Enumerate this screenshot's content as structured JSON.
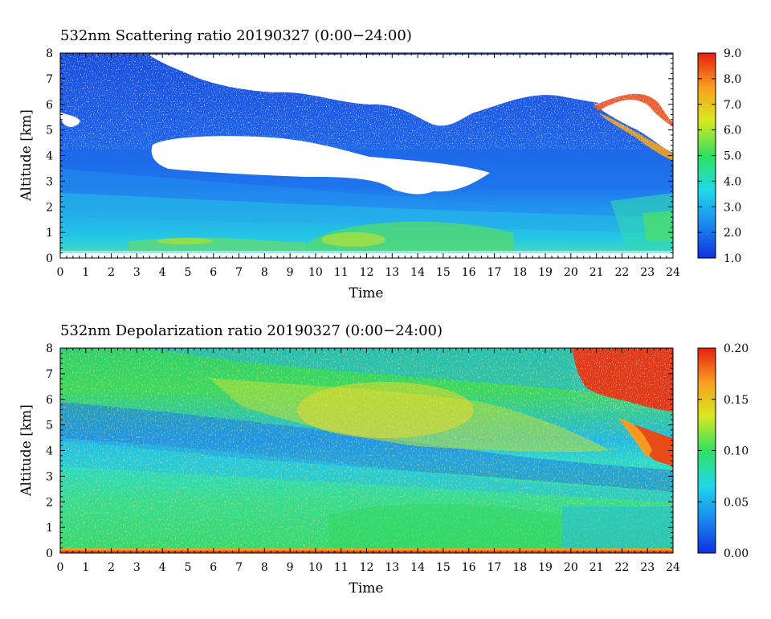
{
  "chart_data": [
    {
      "type": "heatmap",
      "title": "532nm Scattering ratio  20190327 (0:00−24:00)",
      "xlabel": "Time",
      "ylabel": "Altitude [km]",
      "xlim": [
        0,
        24
      ],
      "ylim": [
        0,
        8
      ],
      "xticks": [
        "0",
        "1",
        "2",
        "3",
        "4",
        "5",
        "6",
        "7",
        "8",
        "9",
        "10",
        "11",
        "12",
        "13",
        "14",
        "15",
        "16",
        "17",
        "18",
        "19",
        "20",
        "21",
        "22",
        "23",
        "24"
      ],
      "yticks": [
        "0",
        "1",
        "2",
        "3",
        "4",
        "5",
        "6",
        "7",
        "8"
      ],
      "colorbar": {
        "range": [
          1.0,
          9.0
        ],
        "ticks": [
          "1.0",
          "2.0",
          "3.0",
          "4.0",
          "5.0",
          "6.0",
          "7.0",
          "8.0",
          "9.0"
        ],
        "colormap": [
          "#1030e0",
          "#1a8cf0",
          "#20d8e8",
          "#30e060",
          "#d8e820",
          "#f8a020",
          "#e82010"
        ]
      },
      "grid": false
    },
    {
      "type": "heatmap",
      "title": "532nm Depolarization ratio  20190327 (0:00−24:00)",
      "xlabel": "Time",
      "ylabel": "Altitude [km]",
      "xlim": [
        0,
        24
      ],
      "ylim": [
        0,
        8
      ],
      "xticks": [
        "0",
        "1",
        "2",
        "3",
        "4",
        "5",
        "6",
        "7",
        "8",
        "9",
        "10",
        "11",
        "12",
        "13",
        "14",
        "15",
        "16",
        "17",
        "18",
        "19",
        "20",
        "21",
        "22",
        "23",
        "24"
      ],
      "yticks": [
        "0",
        "1",
        "2",
        "3",
        "4",
        "5",
        "6",
        "7",
        "8"
      ],
      "colorbar": {
        "range": [
          0.0,
          0.2
        ],
        "ticks": [
          "0.00",
          "0.05",
          "0.10",
          "0.15",
          "0.20"
        ],
        "colormap": [
          "#1030e0",
          "#1a8cf0",
          "#20d8e8",
          "#30e060",
          "#d8e820",
          "#f8a020",
          "#e82010"
        ]
      },
      "grid": false
    }
  ]
}
